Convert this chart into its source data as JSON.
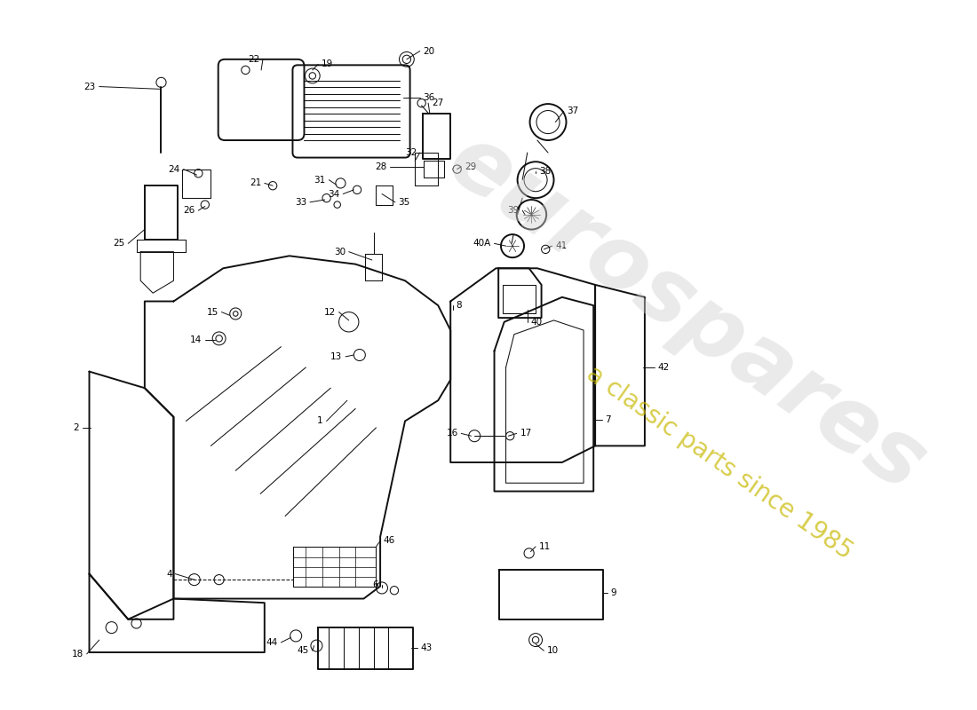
{
  "background_color": "#ffffff",
  "line_color": "#111111",
  "watermark_color1": "#d0d0d0",
  "watermark_color2": "#c8b800",
  "watermark_text1": "eurospares",
  "watermark_text2": "a classic parts since 1985",
  "figsize": [
    11.0,
    8.0
  ],
  "dpi": 100,
  "lw_main": 1.4,
  "lw_thin": 0.75,
  "label_fontsize": 7.5
}
